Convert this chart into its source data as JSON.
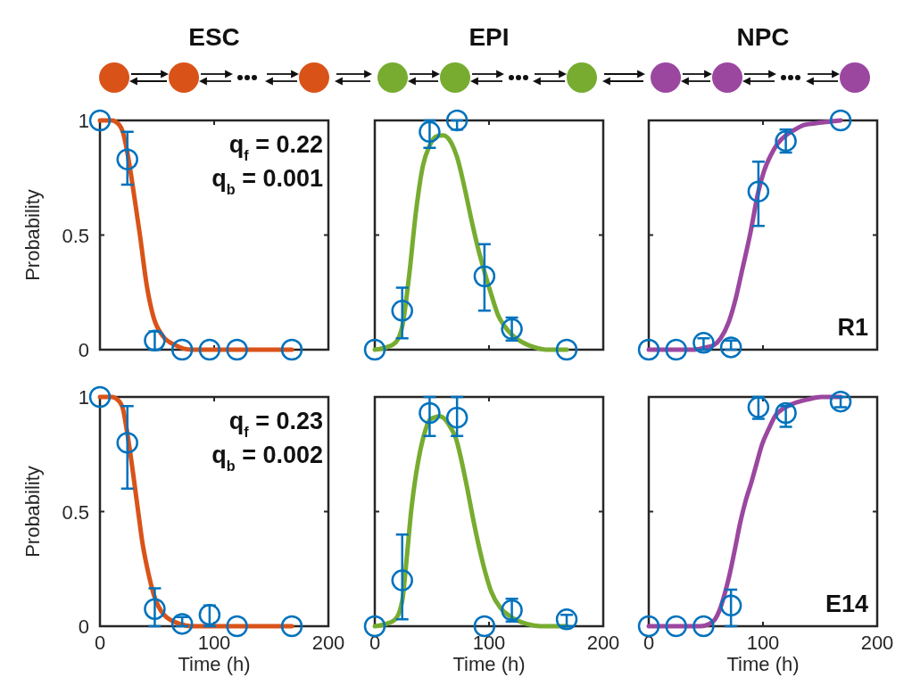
{
  "chart_data": [
    {
      "type": "line",
      "title": "ESC",
      "ylabel": "Probability",
      "xlim": [
        0,
        200
      ],
      "ylim": [
        0,
        1
      ],
      "xticks": [
        0,
        100,
        200
      ],
      "yticks": [
        0,
        0.5,
        1
      ],
      "tick_labels": "y",
      "annotations": [
        "q$_{f}$ = 0.22",
        "q$_{b}$ = 0.001"
      ],
      "series": [
        {
          "type": "line",
          "color": "#d95319",
          "marker": "none",
          "x": [
            0,
            10,
            17,
            20,
            24,
            27,
            30,
            35,
            41,
            47,
            55,
            66,
            80,
            168
          ],
          "values": [
            1,
            1,
            0.98,
            0.95,
            0.86,
            0.77,
            0.67,
            0.5,
            0.28,
            0.14,
            0.06,
            0.02,
            0,
            0
          ]
        },
        {
          "type": "scatter",
          "color": "#0072bd",
          "marker": "circle",
          "x": [
            0,
            24,
            48,
            72,
            96,
            120,
            168
          ],
          "values": [
            1,
            0.83,
            0.04,
            0,
            0,
            0,
            0
          ],
          "errors": [
            null,
            [
              0.72,
              0.95
            ],
            [
              0,
              0.08
            ],
            null,
            null,
            null,
            null
          ]
        }
      ]
    },
    {
      "type": "line",
      "title": "EPI",
      "xlim": [
        0,
        200
      ],
      "ylim": [
        0,
        1
      ],
      "xticks": [
        0,
        100,
        200
      ],
      "yticks": [
        0,
        0.5,
        1
      ],
      "tick_labels": false,
      "series": [
        {
          "type": "line",
          "color": "#77ac30",
          "marker": "none",
          "x": [
            0,
            10,
            18,
            24,
            30,
            36,
            42,
            48,
            54,
            60,
            66,
            72,
            78,
            84,
            90,
            96,
            102,
            108,
            114,
            120,
            130,
            140,
            150,
            168
          ],
          "values": [
            0,
            0.01,
            0.03,
            0.1,
            0.32,
            0.6,
            0.8,
            0.89,
            0.93,
            0.935,
            0.91,
            0.84,
            0.72,
            0.58,
            0.45,
            0.34,
            0.24,
            0.15,
            0.1,
            0.065,
            0.03,
            0.01,
            0,
            0
          ]
        },
        {
          "type": "scatter",
          "color": "#0072bd",
          "marker": "circle",
          "x": [
            0,
            24,
            48,
            72,
            96,
            120,
            168
          ],
          "values": [
            0,
            0.17,
            0.95,
            1,
            0.32,
            0.09,
            0
          ],
          "errors": [
            null,
            [
              0.05,
              0.27
            ],
            [
              0.88,
              1
            ],
            [
              0.96,
              1
            ],
            [
              0.17,
              0.46
            ],
            [
              0.04,
              0.14
            ],
            null
          ]
        }
      ]
    },
    {
      "type": "line",
      "title": "NPC",
      "xlim": [
        0,
        200
      ],
      "ylim": [
        0,
        1
      ],
      "xticks": [
        0,
        100,
        200
      ],
      "yticks": [
        0,
        0.5,
        1
      ],
      "tick_labels": false,
      "annotations": [
        "R1"
      ],
      "series": [
        {
          "type": "line",
          "color": "#9b47a0",
          "marker": "none",
          "x": [
            0,
            40,
            50,
            57,
            63,
            70,
            76,
            81,
            89,
            96,
            101,
            107,
            113,
            120,
            128,
            136,
            150,
            168
          ],
          "values": [
            0,
            0,
            0.01,
            0.02,
            0.05,
            0.12,
            0.22,
            0.33,
            0.51,
            0.69,
            0.78,
            0.85,
            0.9,
            0.935,
            0.96,
            0.98,
            0.99,
            1
          ]
        },
        {
          "type": "scatter",
          "color": "#0072bd",
          "marker": "circle",
          "x": [
            0,
            24,
            48,
            72,
            96,
            120,
            168
          ],
          "values": [
            0,
            0,
            0.03,
            0.01,
            0.69,
            0.91,
            1
          ],
          "errors": [
            null,
            null,
            [
              0,
              0.05
            ],
            [
              0,
              0.04
            ],
            [
              0.54,
              0.82
            ],
            [
              0.86,
              0.96
            ],
            null
          ]
        }
      ]
    },
    {
      "type": "line",
      "xlabel": "Time (h)",
      "ylabel": "Probability",
      "xlim": [
        0,
        200
      ],
      "ylim": [
        0,
        1
      ],
      "xticks": [
        0,
        100,
        200
      ],
      "yticks": [
        0,
        0.5,
        1
      ],
      "annotations": [
        "q$_{f}$ = 0.23",
        "q$_{b}$ = 0.002"
      ],
      "series": [
        {
          "type": "line",
          "color": "#d95319",
          "marker": "none",
          "x": [
            0,
            10,
            17,
            20,
            24,
            27,
            30,
            34,
            37,
            42,
            47,
            56,
            70,
            80,
            168
          ],
          "values": [
            1,
            1,
            0.98,
            0.95,
            0.84,
            0.74,
            0.63,
            0.48,
            0.37,
            0.24,
            0.14,
            0.05,
            0.01,
            0,
            0
          ]
        },
        {
          "type": "scatter",
          "color": "#0072bd",
          "marker": "circle",
          "x": [
            0,
            24,
            48,
            72,
            96,
            120,
            168
          ],
          "values": [
            1,
            0.8,
            0.075,
            0.01,
            0.05,
            0,
            0
          ],
          "errors": [
            null,
            [
              0.6,
              0.96
            ],
            [
              0,
              0.165
            ],
            [
              0,
              0.04
            ],
            [
              0,
              0.09
            ],
            null,
            null
          ]
        }
      ]
    },
    {
      "type": "line",
      "xlabel": "Time (h)",
      "xlim": [
        0,
        200
      ],
      "ylim": [
        0,
        1
      ],
      "xticks": [
        0,
        100,
        200
      ],
      "yticks": [
        0,
        0.5,
        1
      ],
      "tick_labels": "x",
      "series": [
        {
          "type": "line",
          "color": "#77ac30",
          "marker": "none",
          "x": [
            0,
            10,
            18,
            24,
            28,
            32,
            36,
            40,
            44,
            48,
            52,
            57,
            62,
            66,
            71,
            76,
            81,
            86,
            92,
            97,
            102,
            110,
            118,
            133,
            145,
            168
          ],
          "values": [
            0,
            0.01,
            0.03,
            0.11,
            0.3,
            0.51,
            0.66,
            0.77,
            0.85,
            0.9,
            0.91,
            0.915,
            0.9,
            0.87,
            0.82,
            0.72,
            0.6,
            0.47,
            0.33,
            0.23,
            0.15,
            0.08,
            0.045,
            0.01,
            0,
            0
          ]
        },
        {
          "type": "scatter",
          "color": "#0072bd",
          "marker": "circle",
          "x": [
            0,
            24,
            48,
            72,
            96,
            120,
            168
          ],
          "values": [
            0,
            0.2,
            0.93,
            0.91,
            0,
            0.07,
            0.03
          ],
          "errors": [
            null,
            [
              0.03,
              0.4
            ],
            [
              0.83,
              1
            ],
            [
              0.83,
              1
            ],
            null,
            [
              0.02,
              0.12
            ],
            [
              0,
              0.05
            ]
          ]
        }
      ]
    },
    {
      "type": "line",
      "xlabel": "Time (h)",
      "xlim": [
        0,
        200
      ],
      "ylim": [
        0,
        1
      ],
      "xticks": [
        0,
        100,
        200
      ],
      "yticks": [
        0,
        0.5,
        1
      ],
      "tick_labels": "x",
      "annotations": [
        "E14"
      ],
      "series": [
        {
          "type": "line",
          "color": "#9b47a0",
          "marker": "none",
          "x": [
            0,
            45,
            53,
            58,
            62,
            67,
            71,
            76,
            80,
            85,
            90,
            95,
            99,
            105,
            111,
            118,
            126,
            140,
            151,
            168
          ],
          "values": [
            0,
            0,
            0.01,
            0.03,
            0.07,
            0.15,
            0.23,
            0.35,
            0.45,
            0.55,
            0.63,
            0.72,
            0.79,
            0.86,
            0.92,
            0.95,
            0.97,
            0.99,
            1,
            1
          ]
        },
        {
          "type": "scatter",
          "color": "#0072bd",
          "marker": "circle",
          "x": [
            0,
            24,
            48,
            72,
            96,
            120,
            168
          ],
          "values": [
            0,
            0,
            0,
            0.09,
            0.955,
            0.93,
            0.98
          ],
          "errors": [
            null,
            null,
            null,
            [
              0,
              0.16
            ],
            [
              0.905,
              1
            ],
            [
              0.87,
              0.96
            ],
            [
              0.955,
              1
            ]
          ]
        }
      ]
    }
  ]
}
